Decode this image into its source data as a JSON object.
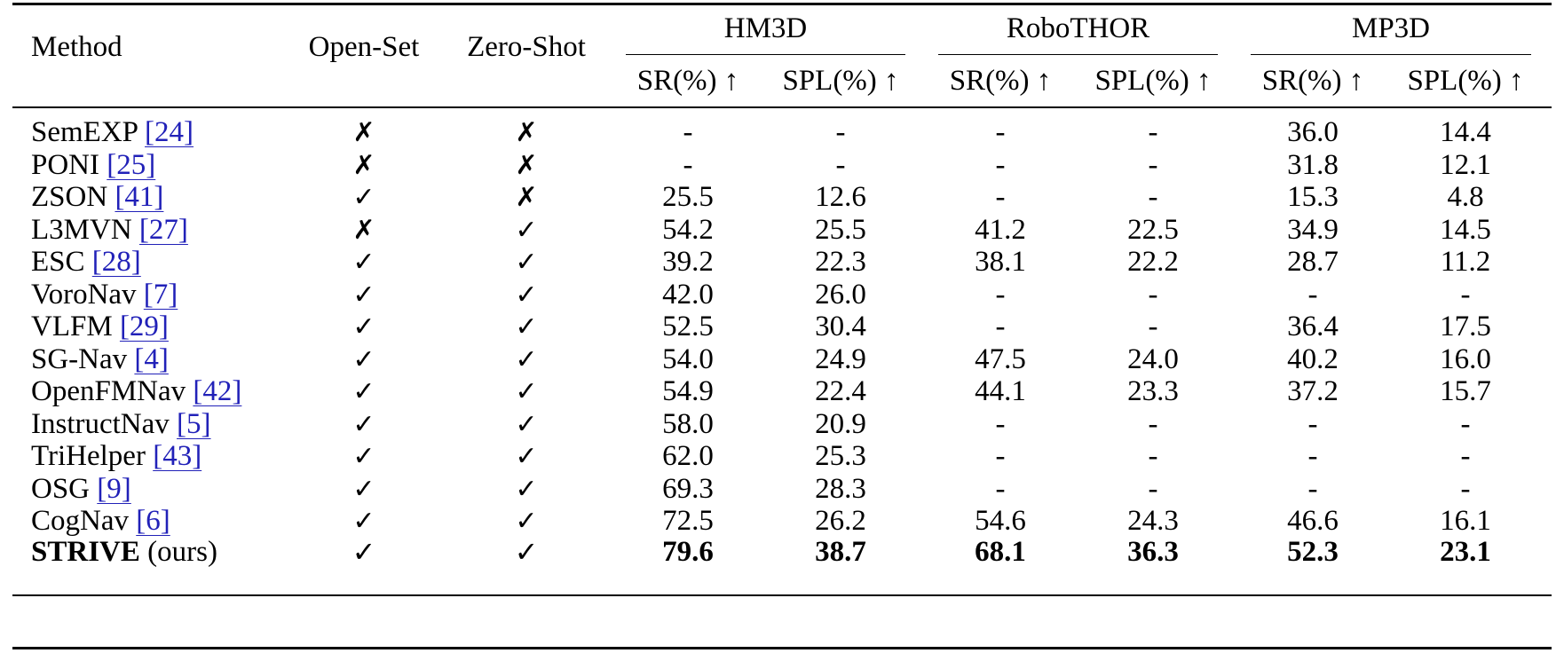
{
  "table": {
    "headers": {
      "method": "Method",
      "open_set": "Open-Set",
      "zero_shot": "Zero-Shot",
      "groups": [
        "HM3D",
        "RoboTHOR",
        "MP3D"
      ],
      "sr": "SR(%) ↑",
      "spl": "SPL(%) ↑"
    },
    "symbols": {
      "yes": "✓",
      "no": "✗"
    },
    "rows": [
      {
        "name": "SemEXP",
        "ref": "[24]",
        "open_set": "✗",
        "zero_shot": "✗",
        "values": [
          "-",
          "-",
          "-",
          "-",
          "36.0",
          "14.4"
        ]
      },
      {
        "name": "PONI",
        "ref": "[25]",
        "open_set": "✗",
        "zero_shot": "✗",
        "values": [
          "-",
          "-",
          "-",
          "-",
          "31.8",
          "12.1"
        ]
      },
      {
        "name": "ZSON",
        "ref": "[41]",
        "open_set": "✓",
        "zero_shot": "✗",
        "values": [
          "25.5",
          "12.6",
          "-",
          "-",
          "15.3",
          "4.8"
        ]
      },
      {
        "name": "L3MVN",
        "ref": "[27]",
        "open_set": "✗",
        "zero_shot": "✓",
        "values": [
          "54.2",
          "25.5",
          "41.2",
          "22.5",
          "34.9",
          "14.5"
        ]
      },
      {
        "name": "ESC",
        "ref": "[28]",
        "open_set": "✓",
        "zero_shot": "✓",
        "values": [
          "39.2",
          "22.3",
          "38.1",
          "22.2",
          "28.7",
          "11.2"
        ]
      },
      {
        "name": "VoroNav",
        "ref": "[7]",
        "open_set": "✓",
        "zero_shot": "✓",
        "values": [
          "42.0",
          "26.0",
          "-",
          "-",
          "-",
          "-"
        ]
      },
      {
        "name": "VLFM",
        "ref": "[29]",
        "open_set": "✓",
        "zero_shot": "✓",
        "values": [
          "52.5",
          "30.4",
          "-",
          "-",
          "36.4",
          "17.5"
        ]
      },
      {
        "name": "SG-Nav",
        "ref": "[4]",
        "open_set": "✓",
        "zero_shot": "✓",
        "values": [
          "54.0",
          "24.9",
          "47.5",
          "24.0",
          "40.2",
          "16.0"
        ]
      },
      {
        "name": "OpenFMNav",
        "ref": "[42]",
        "open_set": "✓",
        "zero_shot": "✓",
        "values": [
          "54.9",
          "22.4",
          "44.1",
          "23.3",
          "37.2",
          "15.7"
        ]
      },
      {
        "name": "InstructNav",
        "ref": "[5]",
        "open_set": "✓",
        "zero_shot": "✓",
        "values": [
          "58.0",
          "20.9",
          "-",
          "-",
          "-",
          "-"
        ]
      },
      {
        "name": "TriHelper",
        "ref": "[43]",
        "open_set": "✓",
        "zero_shot": "✓",
        "values": [
          "62.0",
          "25.3",
          "-",
          "-",
          "-",
          "-"
        ]
      },
      {
        "name": "OSG",
        "ref": "[9]",
        "open_set": "✓",
        "zero_shot": "✓",
        "values": [
          "69.3",
          "28.3",
          "-",
          "-",
          "-",
          "-"
        ]
      },
      {
        "name": "CogNav",
        "ref": "[6]",
        "open_set": "✓",
        "zero_shot": "✓",
        "values": [
          "72.5",
          "26.2",
          "54.6",
          "24.3",
          "46.6",
          "16.1"
        ]
      }
    ],
    "final_row": {
      "name": "STRIVE",
      "suffix": "(ours)",
      "open_set": "✓",
      "zero_shot": "✓",
      "values": [
        "79.6",
        "38.7",
        "68.1",
        "36.3",
        "52.3",
        "23.1"
      ]
    }
  }
}
